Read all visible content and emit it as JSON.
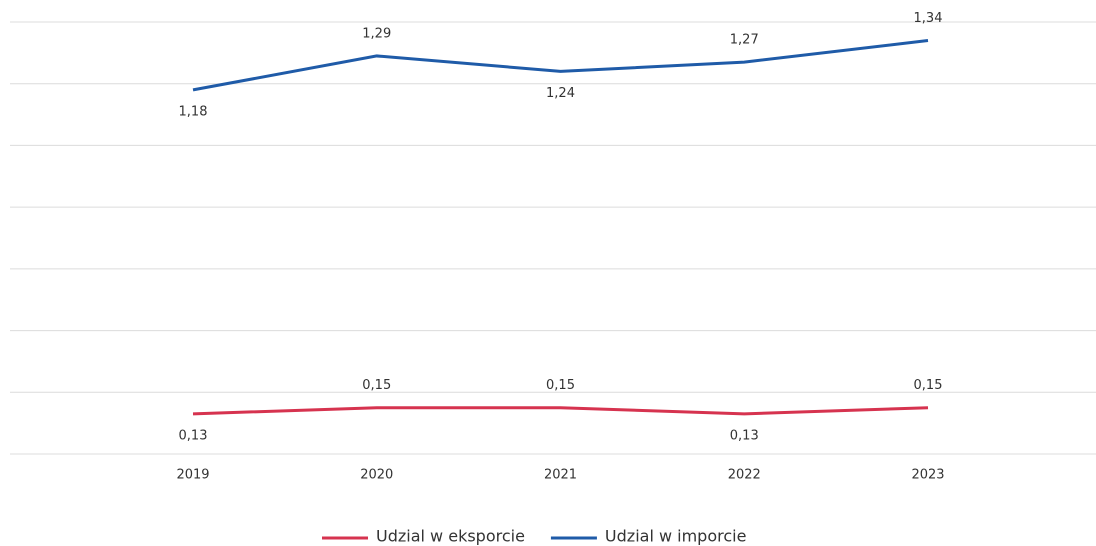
{
  "chart_data": {
    "type": "line",
    "categories": [
      "2019",
      "2020",
      "2021",
      "2022",
      "2023"
    ],
    "series": [
      {
        "name": "Udzial w eksporcie",
        "color": "#d6334f",
        "values": [
          0.13,
          0.15,
          0.15,
          0.13,
          0.15
        ],
        "value_labels": [
          "0,13",
          "0,15",
          "0,15",
          "0,13",
          "0,15"
        ]
      },
      {
        "name": "Udzial w imporcie",
        "color": "#1f5ba8",
        "values": [
          1.18,
          1.29,
          1.24,
          1.27,
          1.34
        ],
        "value_labels": [
          "1,18",
          "1,29",
          "1,24",
          "1,27",
          "1,34"
        ]
      }
    ],
    "ylim": [
      0,
      1.4
    ],
    "yticks": [
      0,
      0.2,
      0.4,
      0.6,
      0.8,
      1,
      1.2,
      1.4
    ],
    "grid": true
  }
}
